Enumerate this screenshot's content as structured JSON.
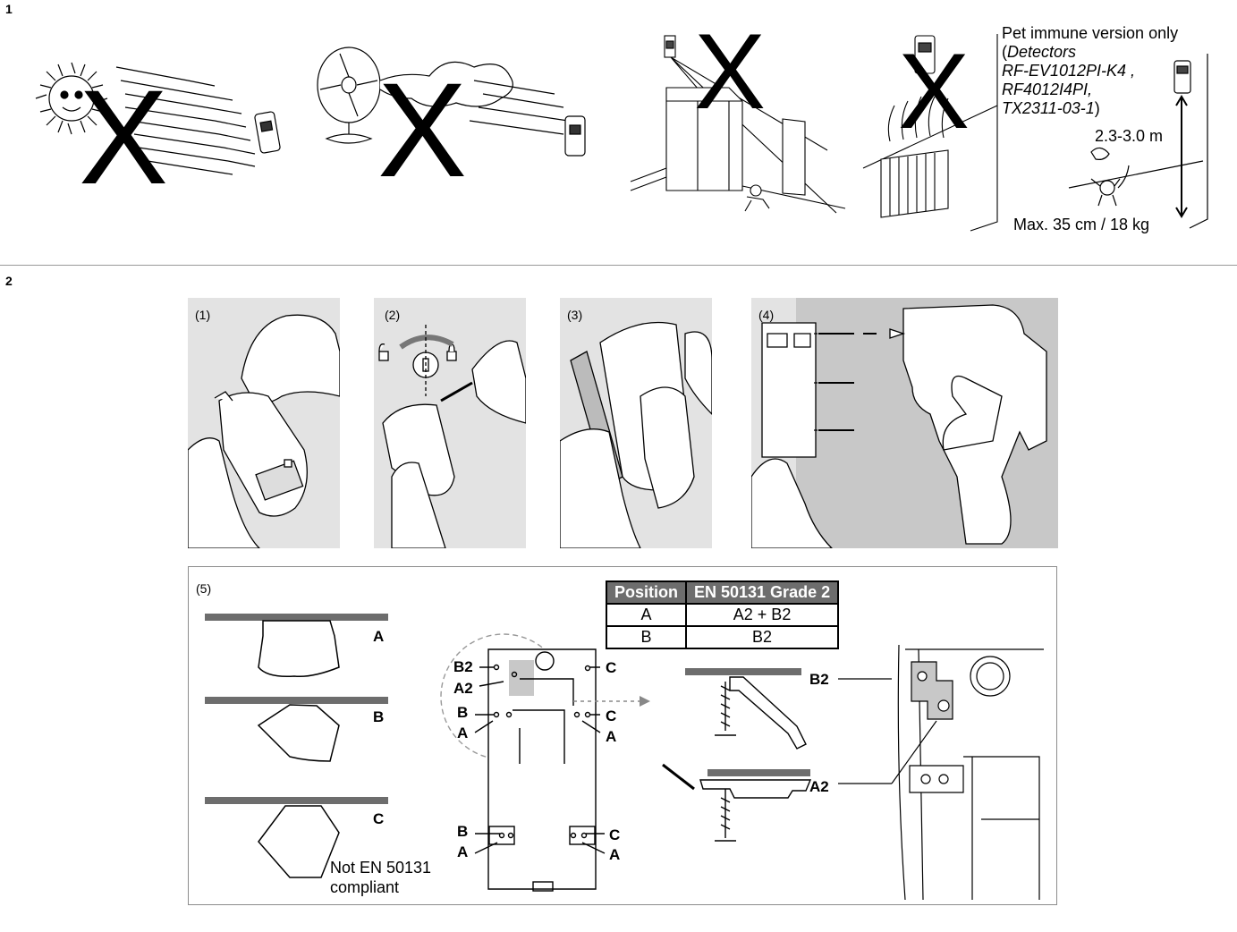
{
  "section1": {
    "number": "1",
    "forbidden_marks": [
      "X",
      "X",
      "X",
      "X"
    ],
    "pet_note": {
      "line1": "Pet immune version only",
      "paren_open": "(",
      "detectors_label": "Detectors",
      "model1": "RF-EV1012PI-K4 ,",
      "model2": "RF4012I4PI,",
      "model3": "TX2311-03-1",
      "paren_close": ")",
      "height_range": "2.3-3.0 m",
      "max_pet": "Max. 35 cm / 18 kg"
    }
  },
  "section2": {
    "number": "2",
    "steps": [
      {
        "label": "(1)"
      },
      {
        "label": "(2)"
      },
      {
        "label": "(3)"
      },
      {
        "label": "(4)"
      }
    ],
    "step5": {
      "label": "(5)",
      "positions": [
        "A",
        "B",
        "C"
      ],
      "not_compliant_line1": "Not EN 50131",
      "not_compliant_line2": "compliant",
      "table": {
        "headers": [
          "Position",
          "EN 50131 Grade 2"
        ],
        "rows": [
          [
            "A",
            "A2 + B2"
          ],
          [
            "B",
            "B2"
          ]
        ]
      },
      "bracket_labels": {
        "b2": "B2",
        "a2": "A2",
        "b": "B",
        "a": "A",
        "c": "C"
      },
      "detail_labels": {
        "b2": "B2",
        "a2": "A2"
      }
    }
  }
}
